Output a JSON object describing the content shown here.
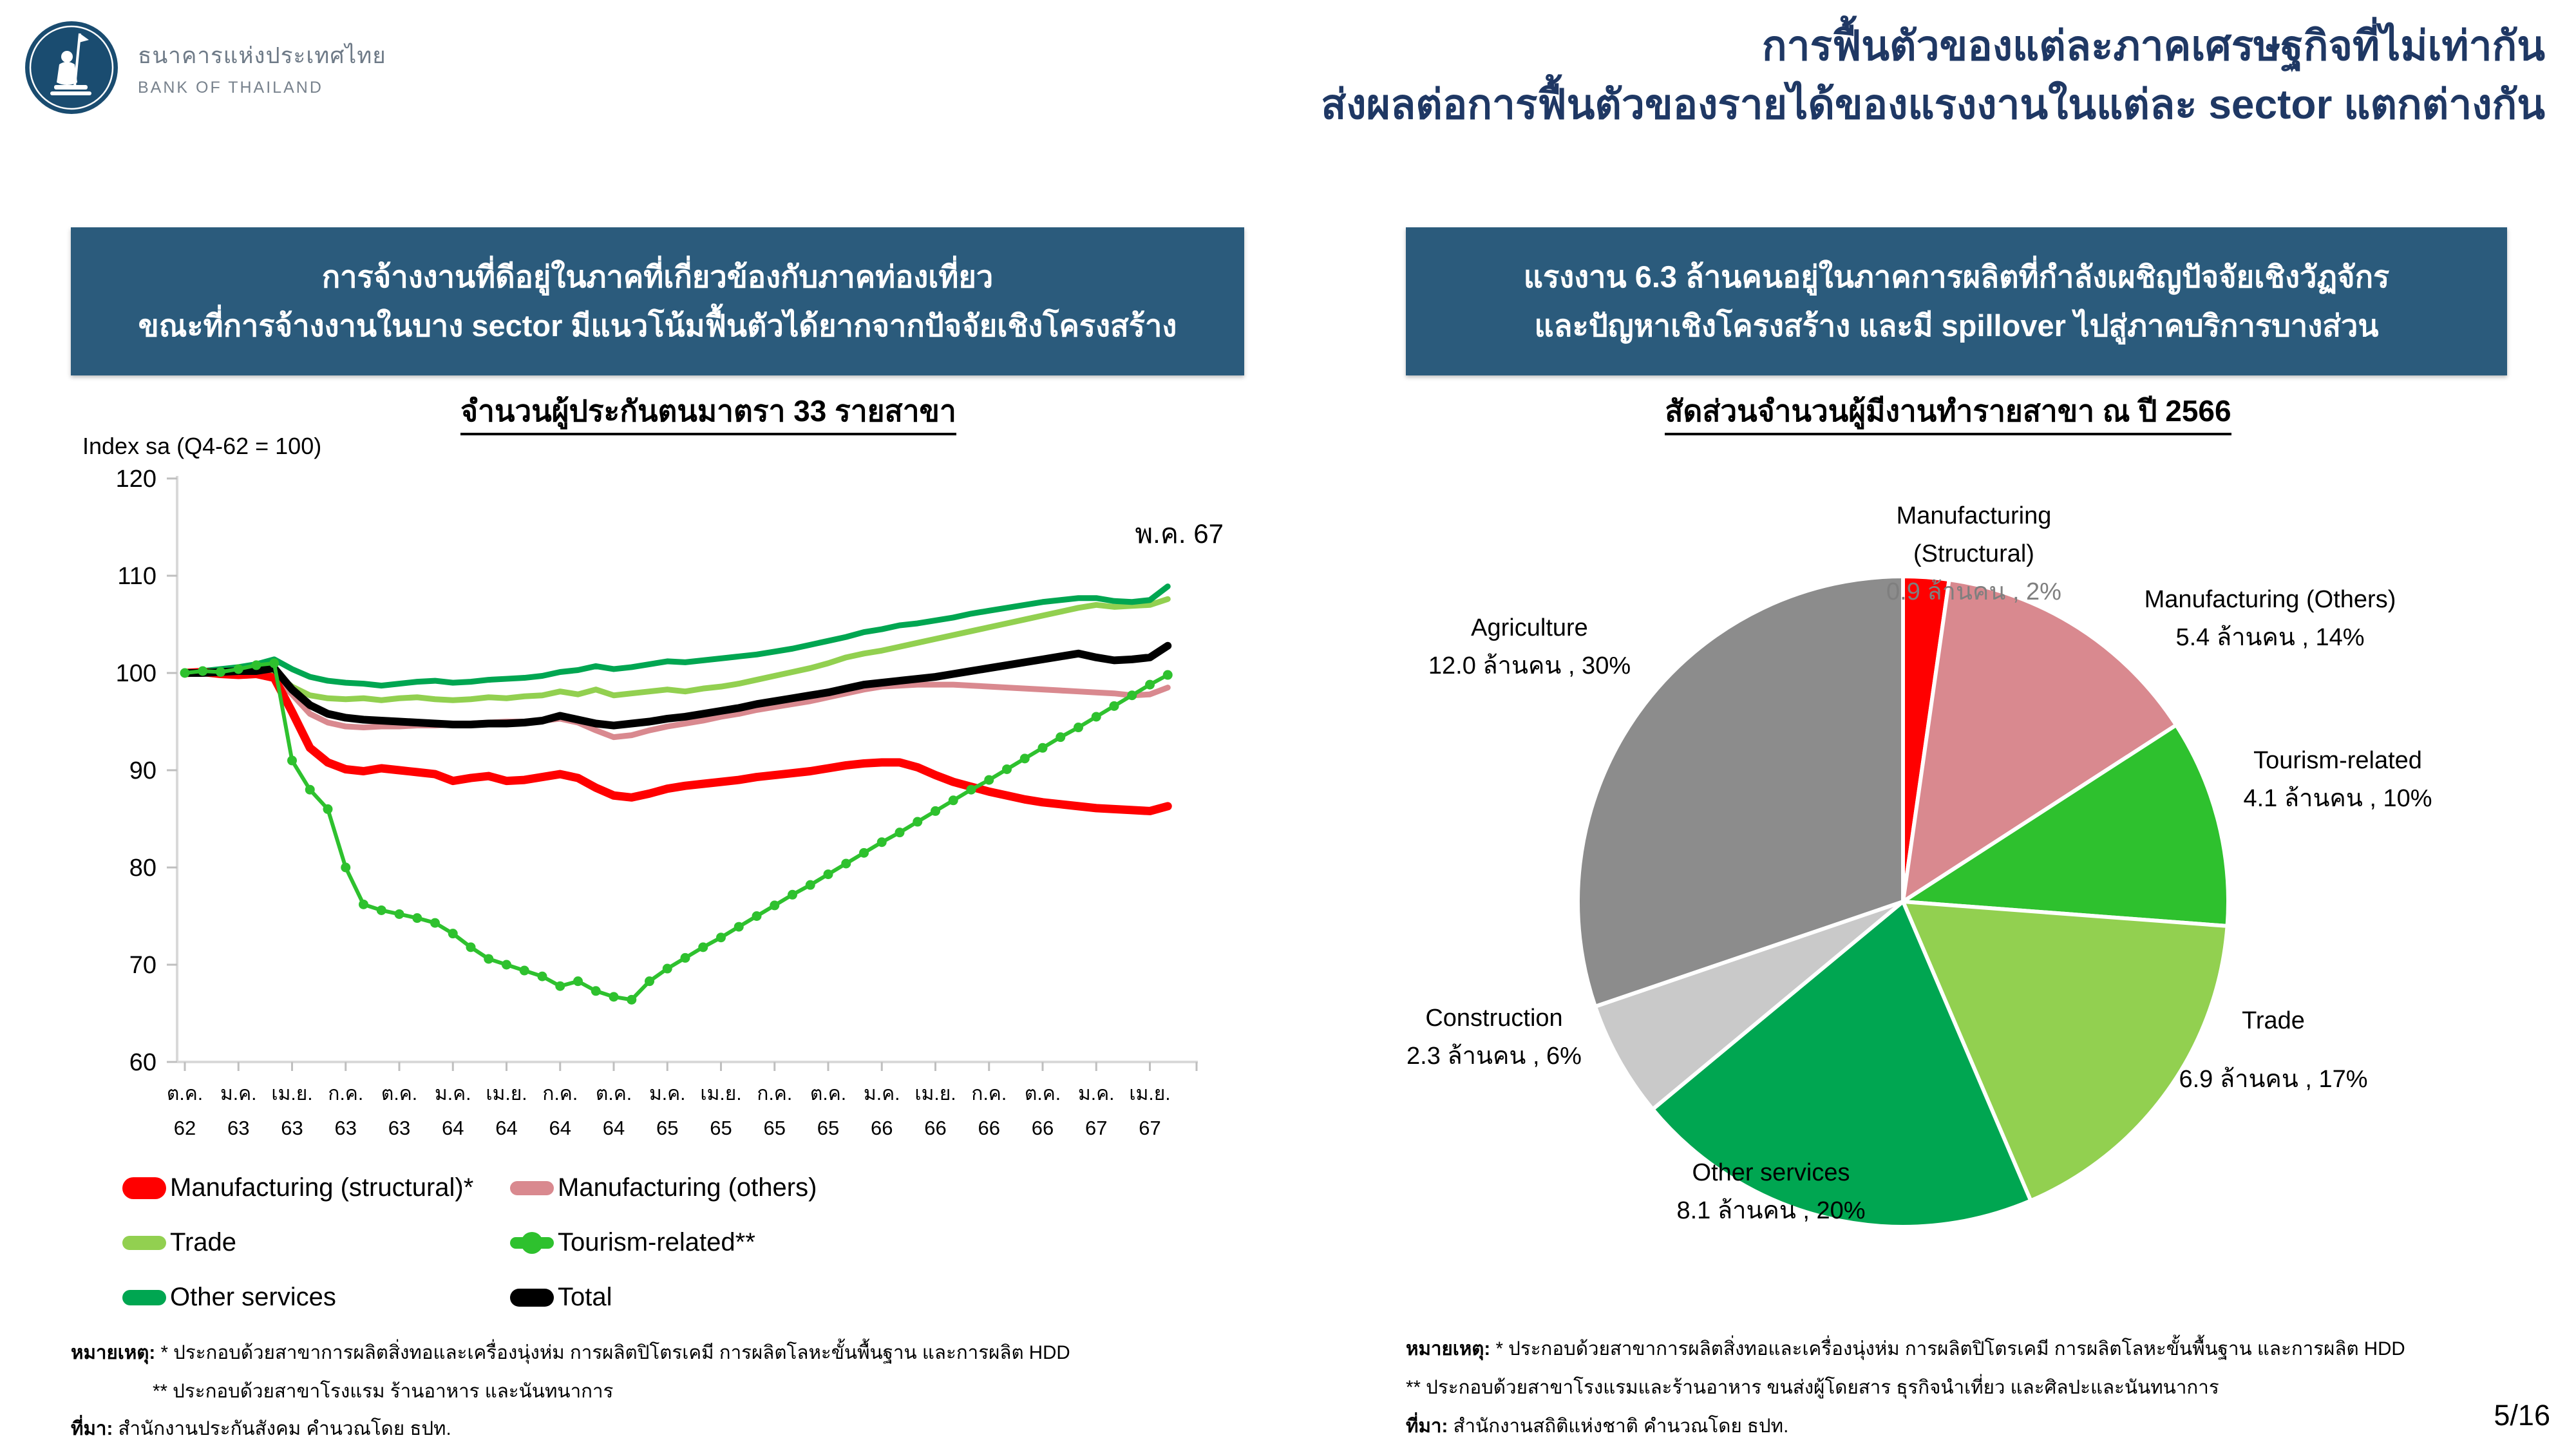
{
  "page": {
    "number": "5/16"
  },
  "theme": {
    "banner_bg": "#2B5B7C",
    "title_navy": "#1F3864",
    "axis_gray": "#D9D9D9",
    "tick_gray": "#BFBFBF"
  },
  "header": {
    "logo_thai": "ธนาคารแห่งประเทศไทย",
    "logo_eng": "BANK OF THAILAND",
    "title_line1": "การฟื้นตัวของแต่ละภาคเศรษฐกิจที่ไม่เท่ากัน",
    "title_line2": "ส่งผลต่อการฟื้นตัวของรายได้ของแรงงานในแต่ละ sector แตกต่างกัน"
  },
  "left_panel": {
    "banner_line1": "การจ้างงานที่ดีอยู่ในภาคที่เกี่ยวข้องกับภาคท่องเที่ยว",
    "banner_line2": "ขณะที่การจ้างงานในบาง sector มีแนวโน้มฟื้นตัวได้ยากจากปัจจัยเชิงโครงสร้าง",
    "footnote1_prefix": "หมายเหตุ:",
    "footnote1_text": " * ประกอบด้วยสาขาการผลิตสิ่งทอและเครื่องนุ่งห่ม การผลิตปิโตรเคมี การผลิตโลหะขั้นพื้นฐาน และการผลิต HDD",
    "footnote2": "** ประกอบด้วยสาขาโรงแรม ร้านอาหาร และนันทนาการ",
    "source_prefix": "ที่มา:",
    "source_text": " สำนักงานประกันสังคม คำนวณโดย ธปท."
  },
  "right_panel": {
    "banner_line1": "แรงงาน 6.3 ล้านคนอยู่ในภาคการผลิตที่กำลังเผชิญปัจจัยเชิงวัฏจักร",
    "banner_line2": "และปัญหาเชิงโครงสร้าง และมี spillover ไปสู่ภาคบริการบางส่วน",
    "footnote1_prefix": "หมายเหตุ:",
    "footnote1_text": " * ประกอบด้วยสาขาการผลิตสิ่งทอและเครื่องนุ่งห่ม การผลิตปิโตรเคมี  การผลิตโลหะขั้นพื้นฐาน และการผลิต HDD",
    "footnote2": "** ประกอบด้วยสาขาโรงแรมและร้านอาหาร ขนส่งผู้โดยสาร ธุรกิจนำเที่ยว และศิลปะและนันทนาการ",
    "source_prefix": "ที่มา:",
    "source_text": " สำนักงานสถิติแห่งชาติ คำนวณโดย ธปท."
  },
  "chart_data": [
    {
      "type": "line",
      "title": "จำนวนผู้ประกันตนมาตรา 33 รายสาขา",
      "ylabel": "Index sa (Q4-62 = 100)",
      "annotation": "พ.ค. 67",
      "ylim": [
        60,
        120
      ],
      "yticks": [
        60,
        70,
        80,
        90,
        100,
        110,
        120
      ],
      "grid": false,
      "legend_position": "bottom",
      "frequency": "monthly",
      "x_tick_every_months": 3,
      "x_tick_months": [
        "ต.ค.",
        "ม.ค.",
        "เม.ย.",
        "ก.ค.",
        "ต.ค.",
        "ม.ค.",
        "เม.ย.",
        "ก.ค.",
        "ต.ค.",
        "ม.ค.",
        "เม.ย.",
        "ก.ค.",
        "ต.ค.",
        "ม.ค.",
        "เม.ย.",
        "ก.ค.",
        "ต.ค.",
        "ม.ค.",
        "เม.ย."
      ],
      "x_tick_years": [
        "62",
        "63",
        "63",
        "63",
        "63",
        "64",
        "64",
        "64",
        "64",
        "65",
        "65",
        "65",
        "65",
        "66",
        "66",
        "66",
        "66",
        "67",
        "67"
      ],
      "series": [
        {
          "name": "Manufacturing (structural)*",
          "color": "#FF0000",
          "width": 13,
          "values": [
            100.0,
            100.1,
            99.9,
            99.8,
            99.9,
            99.5,
            96.0,
            92.3,
            90.8,
            90.1,
            89.9,
            90.2,
            90.0,
            89.8,
            89.6,
            88.9,
            89.2,
            89.4,
            88.9,
            89.0,
            89.3,
            89.6,
            89.2,
            88.2,
            87.4,
            87.2,
            87.6,
            88.1,
            88.4,
            88.6,
            88.8,
            89.0,
            89.3,
            89.5,
            89.7,
            89.9,
            90.2,
            90.5,
            90.7,
            90.8,
            90.8,
            90.3,
            89.5,
            88.8,
            88.3,
            87.8,
            87.4,
            87.0,
            86.7,
            86.5,
            86.3,
            86.1,
            86.0,
            85.9,
            85.8,
            86.3
          ]
        },
        {
          "name": "Manufacturing (others)",
          "color": "#D9898F",
          "width": 9,
          "values": [
            100.0,
            100.0,
            99.9,
            99.8,
            99.8,
            99.6,
            97.8,
            95.8,
            94.9,
            94.5,
            94.4,
            94.5,
            94.5,
            94.6,
            94.6,
            94.7,
            94.8,
            94.9,
            95.0,
            95.0,
            95.1,
            95.3,
            94.9,
            94.1,
            93.4,
            93.6,
            94.1,
            94.5,
            94.8,
            95.1,
            95.5,
            95.8,
            96.2,
            96.5,
            96.8,
            97.1,
            97.5,
            97.9,
            98.3,
            98.6,
            98.7,
            98.8,
            98.8,
            98.8,
            98.7,
            98.6,
            98.5,
            98.4,
            98.3,
            98.2,
            98.1,
            98.0,
            97.9,
            97.7,
            97.8,
            98.5
          ]
        },
        {
          "name": "Trade",
          "color": "#92D050",
          "width": 9,
          "values": [
            100.0,
            100.1,
            100.2,
            100.3,
            100.2,
            100.0,
            98.6,
            97.7,
            97.4,
            97.3,
            97.4,
            97.2,
            97.4,
            97.5,
            97.3,
            97.2,
            97.3,
            97.5,
            97.4,
            97.6,
            97.7,
            98.1,
            97.8,
            98.3,
            97.7,
            97.9,
            98.1,
            98.3,
            98.1,
            98.4,
            98.6,
            98.9,
            99.3,
            99.7,
            100.1,
            100.5,
            101.0,
            101.6,
            102.0,
            102.3,
            102.7,
            103.1,
            103.5,
            103.9,
            104.3,
            104.7,
            105.1,
            105.5,
            105.9,
            106.3,
            106.7,
            107.0,
            106.8,
            106.9,
            107.0,
            107.6
          ]
        },
        {
          "name": "Tourism-related**",
          "color": "#2EC12E",
          "width": 6,
          "markers": true,
          "values": [
            100.0,
            100.2,
            100.1,
            100.4,
            100.8,
            101.0,
            91.0,
            88.0,
            86.0,
            80.0,
            76.2,
            75.6,
            75.2,
            74.8,
            74.3,
            73.2,
            71.8,
            70.6,
            70.0,
            69.4,
            68.8,
            67.8,
            68.3,
            67.3,
            66.7,
            66.4,
            68.3,
            69.6,
            70.7,
            71.8,
            72.8,
            73.9,
            75.0,
            76.1,
            77.2,
            78.2,
            79.3,
            80.4,
            81.5,
            82.6,
            83.6,
            84.7,
            85.8,
            86.9,
            88.0,
            89.0,
            90.1,
            91.2,
            92.3,
            93.4,
            94.4,
            95.5,
            96.6,
            97.7,
            98.8,
            99.8
          ]
        },
        {
          "name": "Other services",
          "color": "#00A651",
          "width": 9,
          "values": [
            100.0,
            100.2,
            100.4,
            100.6,
            100.9,
            101.4,
            100.4,
            99.6,
            99.2,
            99.0,
            98.9,
            98.7,
            98.9,
            99.1,
            99.2,
            99.0,
            99.1,
            99.3,
            99.4,
            99.5,
            99.7,
            100.1,
            100.3,
            100.7,
            100.4,
            100.6,
            100.9,
            101.2,
            101.1,
            101.3,
            101.5,
            101.7,
            101.9,
            102.2,
            102.5,
            102.9,
            103.3,
            103.7,
            104.2,
            104.5,
            104.9,
            105.1,
            105.4,
            105.7,
            106.1,
            106.4,
            106.7,
            107.0,
            107.3,
            107.5,
            107.7,
            107.7,
            107.4,
            107.3,
            107.5,
            108.9
          ]
        },
        {
          "name": "Total",
          "color": "#000000",
          "width": 12,
          "values": [
            100.0,
            100.0,
            100.1,
            100.2,
            100.2,
            100.5,
            98.3,
            96.7,
            95.8,
            95.4,
            95.2,
            95.1,
            95.0,
            94.9,
            94.8,
            94.7,
            94.7,
            94.8,
            94.8,
            94.9,
            95.1,
            95.6,
            95.2,
            94.8,
            94.6,
            94.8,
            95.0,
            95.3,
            95.5,
            95.8,
            96.1,
            96.4,
            96.8,
            97.1,
            97.4,
            97.7,
            98.0,
            98.4,
            98.8,
            99.0,
            99.2,
            99.4,
            99.6,
            99.9,
            100.2,
            100.5,
            100.8,
            101.1,
            101.4,
            101.7,
            102.0,
            101.6,
            101.3,
            101.4,
            101.6,
            102.8
          ]
        }
      ]
    },
    {
      "type": "pie",
      "title": "สัดส่วนจำนวนผู้มีงานทำรายสาขา ณ ปี 2566",
      "unit": "ล้านคน",
      "start_angle_deg": 0,
      "direction": "clockwise",
      "slices": [
        {
          "label": "Manufacturing (Structural)",
          "value": 0.9,
          "pct": "2%",
          "color": "#FF0000",
          "value_text": "0.9 ล้านคน , 2%"
        },
        {
          "label": "Manufacturing (Others)",
          "value": 5.4,
          "pct": "14%",
          "color": "#D9898F",
          "value_text": "5.4 ล้านคน , 14%"
        },
        {
          "label": "Tourism-related",
          "value": 4.1,
          "pct": "10%",
          "color": "#2EC12E",
          "value_text": "4.1 ล้านคน , 10%"
        },
        {
          "label": "Trade",
          "value": 6.9,
          "pct": "17%",
          "color": "#92D050",
          "value_text": "6.9 ล้านคน , 17%"
        },
        {
          "label": "Other services",
          "value": 8.1,
          "pct": "20%",
          "color": "#00A651",
          "value_text": "8.1 ล้านคน , 20%"
        },
        {
          "label": "Construction",
          "value": 2.3,
          "pct": "6%",
          "color": "#C9C9C9",
          "value_text": "2.3 ล้านคน , 6%"
        },
        {
          "label": "Agriculture",
          "value": 12.0,
          "pct": "30%",
          "color": "#8C8C8C",
          "value_text": "12.0 ล้านคน , 30%"
        }
      ]
    }
  ]
}
